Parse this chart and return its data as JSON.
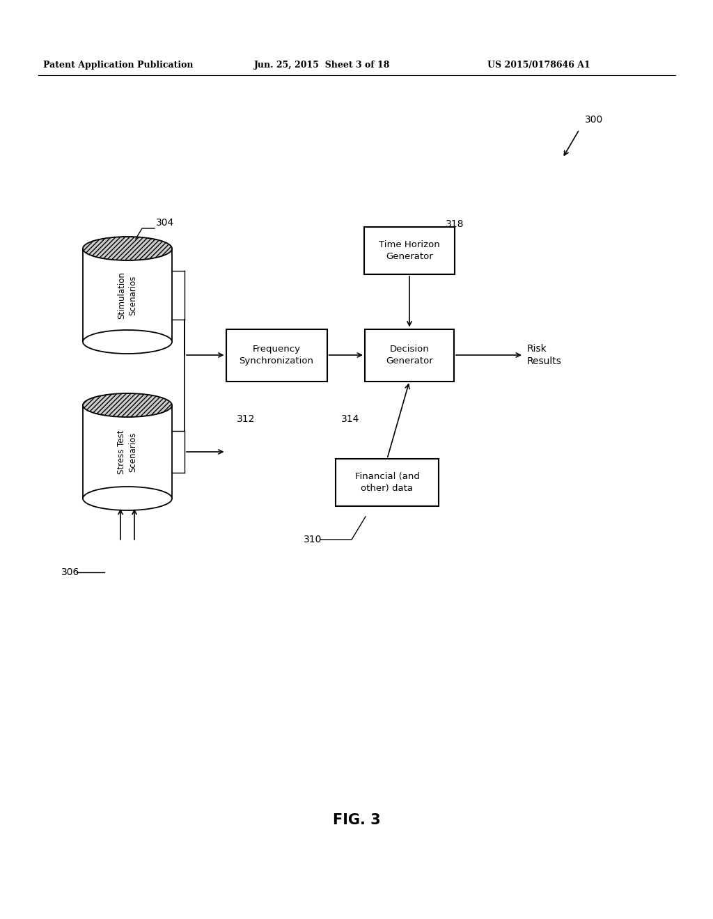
{
  "header_left": "Patent Application Publication",
  "header_mid": "Jun. 25, 2015  Sheet 3 of 18",
  "header_right": "US 2015/0178646 A1",
  "fig_label": "FIG. 3",
  "ref_300": "300",
  "ref_304": "304",
  "ref_306": "306",
  "ref_310": "310",
  "ref_312": "312",
  "ref_314": "314",
  "ref_318": "318",
  "box_freq_sync": "Frequency\nSynchronization",
  "box_decision_gen": "Decision\nGenerator",
  "box_time_horizon": "Time Horizon\nGenerator",
  "box_financial": "Financial (and\nother) data",
  "cyl_stim": "Stimulation\nScenarios",
  "cyl_stress": "Stress Test\nScenarios",
  "text_risk": "Risk\nResults",
  "bg_color": "#ffffff",
  "text_color": "#000000"
}
